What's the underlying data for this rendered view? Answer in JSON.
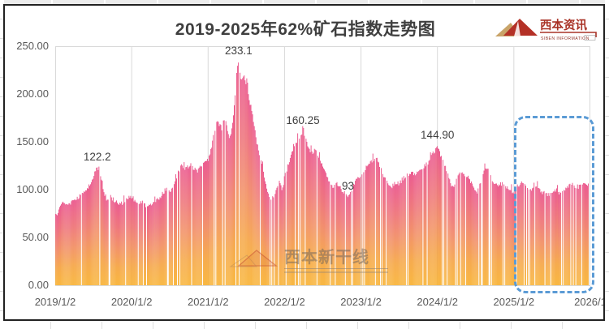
{
  "title": "2019-2025年62%矿石指数走势图",
  "brand": {
    "name": "西本资讯",
    "caption": "SIBEN INFORMATION"
  },
  "watermark": {
    "name": "西本新干线"
  },
  "axes": {
    "y_ticks": [
      "250.00",
      "200.00",
      "150.00",
      "100.00",
      "50.00",
      "0.00"
    ],
    "x_ticks": [
      "2019/1/2",
      "2020/1/2",
      "2021/1/2",
      "2022/1/2",
      "2023/1/2",
      "2024/1/2",
      "2025/1/2",
      "2026/1"
    ]
  },
  "colors": {
    "bar_top": "#e94b85",
    "bar_mid": "#f1885a",
    "bar_bottom": "#f8b02e",
    "grid": "#d9d9d9",
    "axis_text": "#595959",
    "title_text": "#3f3f3f",
    "highlight": "#5b9bd5",
    "brand_red": "#a93226",
    "brand_gold": "#c9a469"
  },
  "chart_data": {
    "type": "bar",
    "title": "2019-2025年62%矿石指数走势图",
    "xlabel": "",
    "ylabel": "",
    "ylim": [
      0,
      250
    ],
    "x_range_years": [
      2019,
      2026
    ],
    "y_tick_values": [
      250,
      200,
      150,
      100,
      50,
      0
    ],
    "x_tick_labels": [
      "2019/1/2",
      "2020/1/2",
      "2021/1/2",
      "2022/1/2",
      "2023/1/2",
      "2024/1/2",
      "2025/1/2",
      "2026/1"
    ],
    "grid": "vertical-year-lines-only",
    "legend": "none",
    "annotations": [
      {
        "label": "122.2",
        "t": 2019.55,
        "v": 122.2,
        "dy": 22
      },
      {
        "label": "233.1",
        "t": 2021.4,
        "v": 233.1,
        "dy": 22
      },
      {
        "label": "160.25",
        "t": 2022.24,
        "v": 160.25,
        "dy": 22
      },
      {
        "label": "93",
        "t": 2022.83,
        "v": 93,
        "dy": 20
      },
      {
        "label": "144.90",
        "t": 2024.0,
        "v": 144.9,
        "dy": 22
      }
    ],
    "highlight_region": {
      "x_from": "2025/1/2",
      "x_to": "2026/1",
      "style": "blue-dashed-rounded-rect"
    },
    "series": [
      {
        "name": "62%矿石指数",
        "sampling": "dense daily bars; anchor points (decimal-year, index value) read from chart",
        "anchors": [
          [
            2019.0,
            72
          ],
          [
            2019.04,
            76
          ],
          [
            2019.08,
            84
          ],
          [
            2019.12,
            87
          ],
          [
            2019.16,
            84
          ],
          [
            2019.2,
            86
          ],
          [
            2019.25,
            89
          ],
          [
            2019.3,
            92
          ],
          [
            2019.35,
            96
          ],
          [
            2019.4,
            99
          ],
          [
            2019.44,
            104
          ],
          [
            2019.48,
            110
          ],
          [
            2019.52,
            118
          ],
          [
            2019.55,
            122.2
          ],
          [
            2019.58,
            116
          ],
          [
            2019.61,
            110
          ],
          [
            2019.64,
            97
          ],
          [
            2019.68,
            89
          ],
          [
            2019.72,
            93
          ],
          [
            2019.76,
            90
          ],
          [
            2019.8,
            87
          ],
          [
            2019.84,
            84
          ],
          [
            2019.88,
            86
          ],
          [
            2019.92,
            89
          ],
          [
            2019.96,
            91
          ],
          [
            2020.0,
            93
          ],
          [
            2020.04,
            89
          ],
          [
            2020.08,
            85
          ],
          [
            2020.12,
            88
          ],
          [
            2020.16,
            85
          ],
          [
            2020.2,
            83
          ],
          [
            2020.25,
            84
          ],
          [
            2020.3,
            86
          ],
          [
            2020.35,
            91
          ],
          [
            2020.4,
            95
          ],
          [
            2020.45,
            101
          ],
          [
            2020.5,
            98
          ],
          [
            2020.54,
            104
          ],
          [
            2020.58,
            110
          ],
          [
            2020.62,
            121
          ],
          [
            2020.66,
            125
          ],
          [
            2020.7,
            121
          ],
          [
            2020.74,
            124
          ],
          [
            2020.78,
            126
          ],
          [
            2020.82,
            121
          ],
          [
            2020.86,
            120
          ],
          [
            2020.9,
            124
          ],
          [
            2020.95,
            128
          ],
          [
            2021.0,
            131
          ],
          [
            2021.04,
            142
          ],
          [
            2021.08,
            160
          ],
          [
            2021.12,
            173
          ],
          [
            2021.15,
            168
          ],
          [
            2021.18,
            164
          ],
          [
            2021.21,
            175
          ],
          [
            2021.24,
            171
          ],
          [
            2021.27,
            153
          ],
          [
            2021.3,
            157
          ],
          [
            2021.33,
            178
          ],
          [
            2021.36,
            208
          ],
          [
            2021.38,
            228
          ],
          [
            2021.4,
            233.1
          ],
          [
            2021.42,
            221
          ],
          [
            2021.44,
            214
          ],
          [
            2021.46,
            221
          ],
          [
            2021.48,
            216
          ],
          [
            2021.51,
            209
          ],
          [
            2021.54,
            193
          ],
          [
            2021.57,
            184
          ],
          [
            2021.6,
            168
          ],
          [
            2021.63,
            152
          ],
          [
            2021.66,
            141
          ],
          [
            2021.7,
            128
          ],
          [
            2021.74,
            113
          ],
          [
            2021.78,
            99
          ],
          [
            2021.82,
            90
          ],
          [
            2021.86,
            92
          ],
          [
            2021.9,
            103
          ],
          [
            2021.94,
            108
          ],
          [
            2021.97,
            100
          ],
          [
            2022.0,
            113
          ],
          [
            2022.04,
            124
          ],
          [
            2022.08,
            136
          ],
          [
            2022.12,
            146
          ],
          [
            2022.16,
            151
          ],
          [
            2022.2,
            156
          ],
          [
            2022.24,
            160.25
          ],
          [
            2022.27,
            153
          ],
          [
            2022.3,
            148
          ],
          [
            2022.33,
            142
          ],
          [
            2022.36,
            138
          ],
          [
            2022.4,
            142
          ],
          [
            2022.44,
            136
          ],
          [
            2022.48,
            128
          ],
          [
            2022.52,
            120
          ],
          [
            2022.56,
            113
          ],
          [
            2022.6,
            107
          ],
          [
            2022.64,
            102
          ],
          [
            2022.68,
            107
          ],
          [
            2022.72,
            104
          ],
          [
            2022.76,
            99
          ],
          [
            2022.8,
            95
          ],
          [
            2022.83,
            93
          ],
          [
            2022.86,
            97
          ],
          [
            2022.9,
            104
          ],
          [
            2022.95,
            111
          ],
          [
            2023.0,
            116
          ],
          [
            2023.05,
            121
          ],
          [
            2023.1,
            126
          ],
          [
            2023.15,
            131
          ],
          [
            2023.2,
            133
          ],
          [
            2023.25,
            125
          ],
          [
            2023.3,
            114
          ],
          [
            2023.35,
            106
          ],
          [
            2023.4,
            103
          ],
          [
            2023.45,
            108
          ],
          [
            2023.5,
            106
          ],
          [
            2023.55,
            112
          ],
          [
            2023.6,
            115
          ],
          [
            2023.65,
            118
          ],
          [
            2023.7,
            116
          ],
          [
            2023.75,
            119
          ],
          [
            2023.8,
            122
          ],
          [
            2023.85,
            126
          ],
          [
            2023.9,
            131
          ],
          [
            2023.95,
            139
          ],
          [
            2024.0,
            144.9
          ],
          [
            2024.04,
            137
          ],
          [
            2024.08,
            129
          ],
          [
            2024.12,
            121
          ],
          [
            2024.16,
            110
          ],
          [
            2024.2,
            101
          ],
          [
            2024.24,
            109
          ],
          [
            2024.28,
            116
          ],
          [
            2024.32,
            119
          ],
          [
            2024.36,
            116
          ],
          [
            2024.4,
            113
          ],
          [
            2024.44,
            108
          ],
          [
            2024.48,
            102
          ],
          [
            2024.52,
            96
          ],
          [
            2024.56,
            108
          ],
          [
            2024.6,
            119
          ],
          [
            2024.64,
            123
          ],
          [
            2024.68,
            117
          ],
          [
            2024.72,
            110
          ],
          [
            2024.76,
            106
          ],
          [
            2024.8,
            104
          ],
          [
            2024.85,
            107
          ],
          [
            2024.9,
            104
          ],
          [
            2024.95,
            100
          ],
          [
            2025.0,
            98
          ],
          [
            2025.05,
            104
          ],
          [
            2025.1,
            107
          ],
          [
            2025.15,
            104
          ],
          [
            2025.2,
            102
          ],
          [
            2025.25,
            100
          ],
          [
            2025.3,
            103
          ],
          [
            2025.35,
            99
          ],
          [
            2025.4,
            96
          ],
          [
            2025.45,
            95
          ],
          [
            2025.5,
            97
          ],
          [
            2025.55,
            100
          ],
          [
            2025.6,
            96
          ],
          [
            2025.65,
            99
          ],
          [
            2025.7,
            103
          ],
          [
            2025.75,
            106
          ],
          [
            2025.8,
            104
          ],
          [
            2025.85,
            103
          ],
          [
            2025.9,
            106
          ],
          [
            2025.95,
            105
          ],
          [
            2025.98,
            105
          ]
        ]
      }
    ]
  }
}
